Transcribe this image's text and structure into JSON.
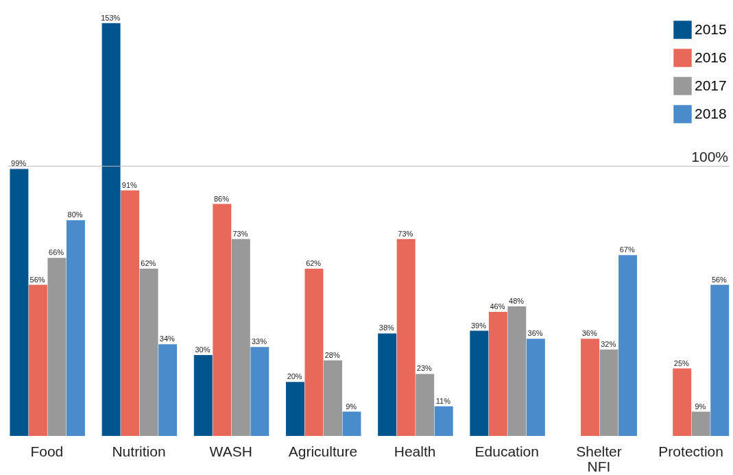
{
  "chart_data": {
    "type": "bar",
    "categories": [
      "Food",
      "Nutrition",
      "WASH",
      "Agriculture",
      "Health",
      "Education",
      "Shelter\nNFI",
      "Protection"
    ],
    "series": [
      {
        "name": "2015",
        "color": "#00558f",
        "values": [
          99,
          153,
          30,
          20,
          38,
          39,
          null,
          null
        ],
        "value_labels": [
          "99%",
          "153%",
          "30%",
          "20%",
          "38%",
          "39%",
          null,
          null
        ]
      },
      {
        "name": "2016",
        "color": "#e8695a",
        "values": [
          56,
          91,
          86,
          62,
          73,
          46,
          36,
          25
        ],
        "value_labels": [
          "56%",
          "91%",
          "86%",
          "62%",
          "73%",
          "46%",
          "36%",
          "25%"
        ]
      },
      {
        "name": "2017",
        "color": "#999999",
        "values": [
          66,
          62,
          73,
          28,
          23,
          48,
          32,
          9
        ],
        "value_labels": [
          "66%",
          "62%",
          "73%",
          "28%",
          "23%",
          "48%",
          "32%",
          "9%"
        ]
      },
      {
        "name": "2018",
        "color": "#4a8ccb",
        "values": [
          80,
          34,
          33,
          9,
          11,
          36,
          67,
          56
        ],
        "value_labels": [
          "80%",
          "34%",
          "33%",
          "9%",
          "11%",
          "36%",
          "67%",
          "56%"
        ]
      }
    ],
    "ylim": [
      0,
      155
    ],
    "legend": "top right",
    "ref_lines": [
      {
        "axis": "y",
        "value": 100,
        "label": "100%",
        "color": "#bbbbbb"
      }
    ]
  }
}
